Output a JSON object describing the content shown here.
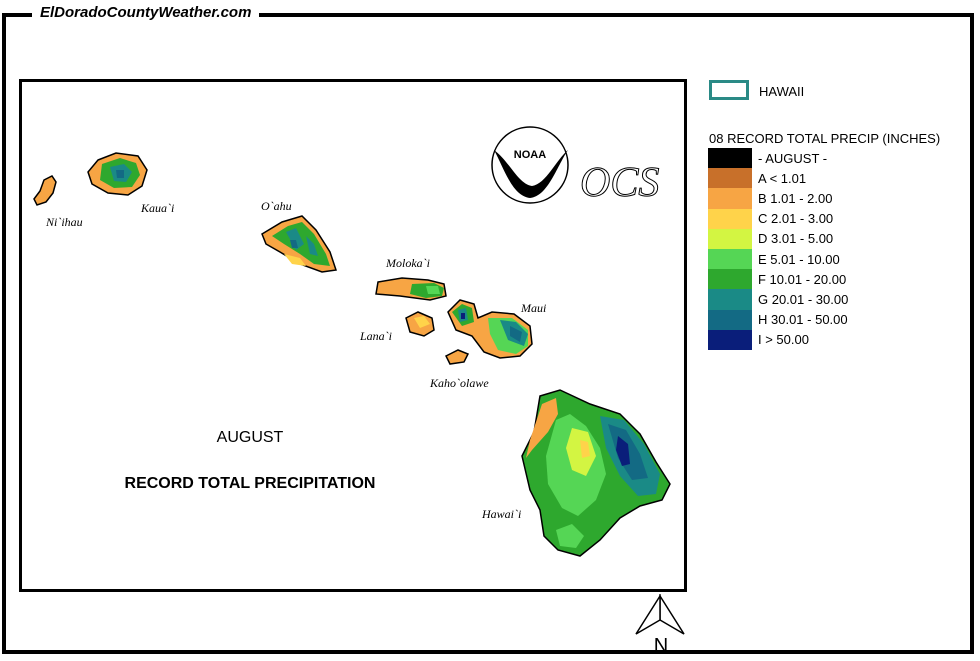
{
  "site_title": "ElDoradoCountyWeather.com",
  "map_labels": {
    "month": "AUGUST",
    "title": "RECORD TOTAL PRECIPITATION",
    "islands": [
      "Ni`ihau",
      "Kaua`i",
      "O`ahu",
      "Moloka`i",
      "Lana`i",
      "Maui",
      "Kaho`olawe",
      "Hawai`i"
    ]
  },
  "logos": {
    "noaa": "NOAA",
    "ocs": "OCS"
  },
  "legend": {
    "state_label": "HAWAII",
    "state_outline_color": "#2a8a86",
    "title": "08 RECORD TOTAL PRECIP (INCHES)",
    "items": [
      {
        "label": "- AUGUST -",
        "color": "#000000"
      },
      {
        "label": "A < 1.01",
        "color": "#c8702a"
      },
      {
        "label": "B 1.01 - 2.00",
        "color": "#f7a544"
      },
      {
        "label": "C 2.01 - 3.00",
        "color": "#ffd34a"
      },
      {
        "label": "D 3.01 - 5.00",
        "color": "#d3f542"
      },
      {
        "label": "E 5.01 - 10.00",
        "color": "#55d655"
      },
      {
        "label": "F 10.01 - 20.00",
        "color": "#2ea82e"
      },
      {
        "label": "G 20.01 - 30.00",
        "color": "#1a8a86"
      },
      {
        "label": "H 30.01 - 50.00",
        "color": "#136a84"
      },
      {
        "label": "I > 50.00",
        "color": "#0a1e7a"
      }
    ]
  },
  "north_label": "N"
}
